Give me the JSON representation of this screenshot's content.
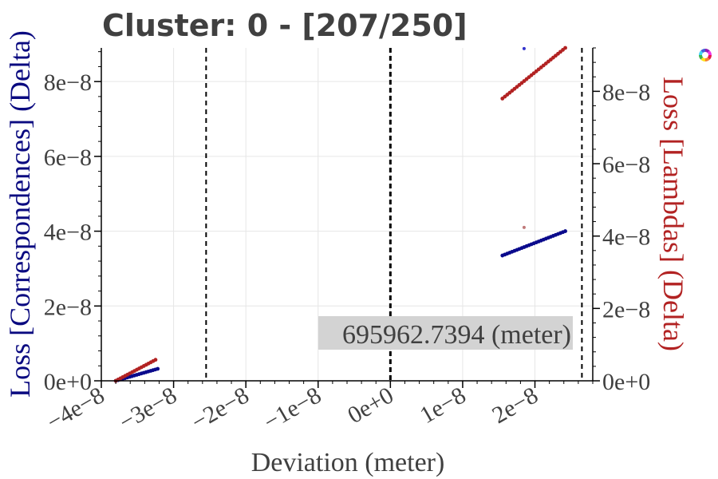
{
  "chart_data": {
    "type": "scatter",
    "title": "Cluster: 0 - [207/250]",
    "xlabel": "Deviation (meter)",
    "ylabel_left": "Loss [Correspondences] (Delta)",
    "ylabel_right": "Loss [Lambdas] (Delta)",
    "xlim": [
      -4e-08,
      2.8e-08
    ],
    "ylim_left": [
      0,
      8.9e-08
    ],
    "ylim_right": [
      0,
      9.2e-08
    ],
    "xticks": [
      {
        "value": -4e-08,
        "label": "−4e−8"
      },
      {
        "value": -3e-08,
        "label": "−3e−8"
      },
      {
        "value": -2e-08,
        "label": "−2e−8"
      },
      {
        "value": -1e-08,
        "label": "−1e−8"
      },
      {
        "value": 0,
        "label": "0e+0"
      },
      {
        "value": 1e-08,
        "label": "1e−8"
      },
      {
        "value": 2e-08,
        "label": "2e−8"
      }
    ],
    "yticks_left": [
      {
        "value": 0,
        "label": "0e+0"
      },
      {
        "value": 2e-08,
        "label": "2e−8"
      },
      {
        "value": 4e-08,
        "label": "4e−8"
      },
      {
        "value": 6e-08,
        "label": "6e−8"
      },
      {
        "value": 8e-08,
        "label": "8e−8"
      }
    ],
    "yticks_right": [
      {
        "value": 0,
        "label": "0e+0"
      },
      {
        "value": 2e-08,
        "label": "2e−8"
      },
      {
        "value": 4e-08,
        "label": "4e−8"
      },
      {
        "value": 6e-08,
        "label": "6e−8"
      },
      {
        "value": 8e-08,
        "label": "8e−8"
      }
    ],
    "vlines": [
      {
        "x": -2.55e-08,
        "style": "dashed"
      },
      {
        "x": 0,
        "style": "dashed-bold"
      },
      {
        "x": 2.65e-08,
        "style": "dashed"
      }
    ],
    "annotation": "695962.7394 (meter)",
    "grid": true,
    "series": [
      {
        "axis": "left",
        "color": "#0a0a8c",
        "segments": [
          {
            "x": [
              -3.8e-08,
              -3.22e-08
            ],
            "y": [
              0,
              3.2e-09
            ]
          },
          {
            "x": [
              1.55e-08,
              2.42e-08
            ],
            "y": [
              3.35e-08,
              4e-08
            ]
          }
        ]
      },
      {
        "axis": "right",
        "color": "#b22222",
        "segments": [
          {
            "x": [
              -3.8e-08,
              -3.25e-08
            ],
            "y": [
              0,
              5.8e-09
            ]
          },
          {
            "x": [
              1.55e-08,
              2.42e-08
            ],
            "y": [
              7.8e-08,
              9.2e-08
            ]
          }
        ]
      },
      {
        "axis": "left",
        "color": "#c07a7a",
        "points": [
          {
            "x": 1.85e-08,
            "y": 4.1e-08
          }
        ]
      },
      {
        "axis": "left",
        "color": "#3333cc",
        "points": [
          {
            "x": 1.85e-08,
            "y": 8.88e-08
          }
        ]
      }
    ],
    "colors": {
      "left_axis": "#0a0a80",
      "right_axis": "#b22222",
      "annotation_bg": "#d3d3d3"
    }
  },
  "ui": {
    "corner_icon": "color-wheel-icon"
  }
}
